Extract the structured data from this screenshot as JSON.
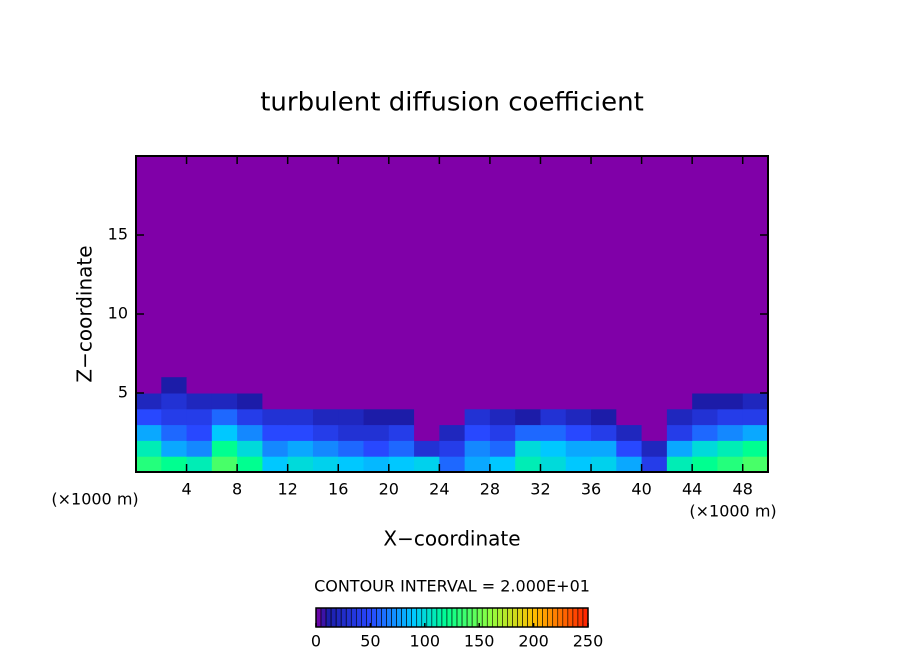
{
  "chart_data": {
    "type": "contour",
    "title": "turbulent diffusion coefficient",
    "xlabel": "X−coordinate",
    "ylabel": "Z−coordinate",
    "x_unit": "(×1000 m)",
    "y_unit": "(×1000 m)",
    "xlim": [
      0,
      50
    ],
    "ylim": [
      0,
      20
    ],
    "xticks": [
      4,
      8,
      12,
      16,
      20,
      24,
      28,
      32,
      36,
      40,
      44,
      48
    ],
    "yticks": [
      5,
      10,
      15
    ],
    "x_edges": [
      0,
      2,
      4,
      6,
      8,
      10,
      12,
      14,
      16,
      18,
      20,
      22,
      24,
      26,
      28,
      30,
      32,
      34,
      36,
      38,
      40,
      42,
      44,
      46,
      48,
      50
    ],
    "z_edges": [
      0,
      1,
      2,
      3,
      4,
      5,
      6
    ],
    "values": [
      [
        130,
        120,
        110,
        140,
        120,
        90,
        100,
        95,
        90,
        85,
        90,
        95,
        60,
        80,
        90,
        110,
        100,
        90,
        95,
        80,
        40,
        110,
        120,
        130,
        140
      ],
      [
        110,
        80,
        70,
        120,
        100,
        70,
        80,
        70,
        60,
        50,
        60,
        30,
        40,
        70,
        60,
        100,
        90,
        80,
        80,
        50,
        20,
        80,
        100,
        110,
        120
      ],
      [
        80,
        60,
        50,
        90,
        70,
        50,
        50,
        40,
        30,
        30,
        40,
        0,
        20,
        50,
        40,
        60,
        60,
        50,
        40,
        20,
        0,
        40,
        60,
        70,
        80
      ],
      [
        50,
        40,
        40,
        60,
        40,
        30,
        30,
        20,
        20,
        10,
        10,
        0,
        0,
        30,
        20,
        10,
        30,
        20,
        10,
        0,
        0,
        20,
        30,
        40,
        40
      ],
      [
        20,
        30,
        20,
        20,
        10,
        0,
        0,
        0,
        0,
        0,
        0,
        0,
        0,
        0,
        0,
        0,
        0,
        0,
        0,
        0,
        0,
        0,
        10,
        10,
        20
      ],
      [
        0,
        10,
        0,
        0,
        0,
        0,
        0,
        0,
        0,
        0,
        0,
        0,
        0,
        0,
        0,
        0,
        0,
        0,
        0,
        0,
        0,
        0,
        0,
        0,
        0
      ]
    ],
    "colormap": [
      [
        0,
        "#8000a8"
      ],
      [
        10,
        "#1c1ca8"
      ],
      [
        50,
        "#2848ff"
      ],
      [
        90,
        "#00c8ff"
      ],
      [
        120,
        "#00ff90"
      ],
      [
        160,
        "#90ff40"
      ],
      [
        200,
        "#ffc000"
      ],
      [
        250,
        "#ff2000"
      ]
    ],
    "colorbar": {
      "label": "CONTOUR INTERVAL = 2.000E+01",
      "lim": [
        0,
        250
      ],
      "ticks": [
        0,
        50,
        100,
        150,
        200,
        250
      ]
    }
  }
}
